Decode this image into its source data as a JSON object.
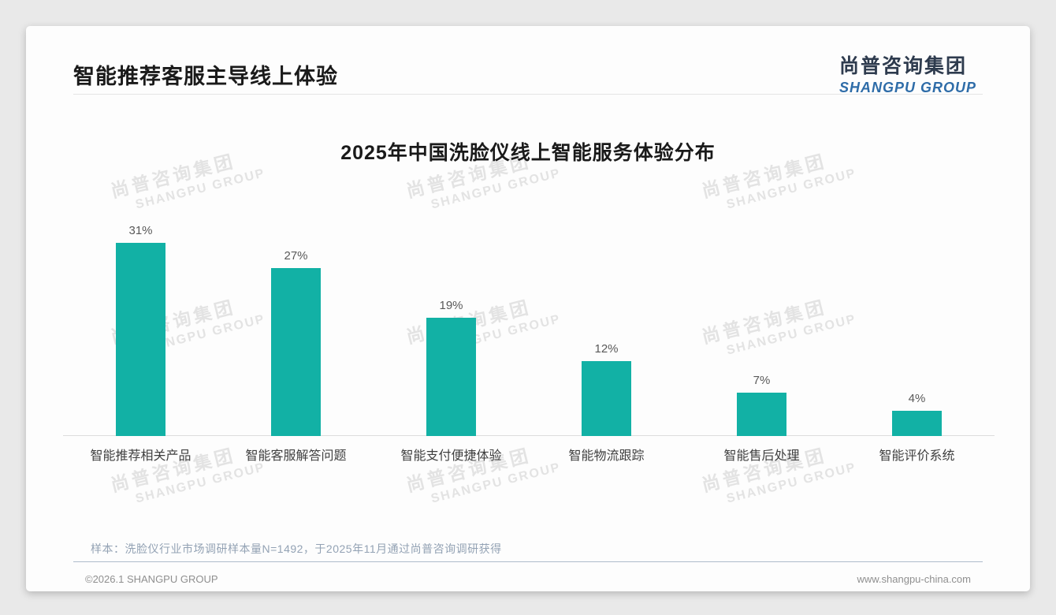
{
  "page": {
    "header": {
      "title": "智能推荐客服主导线上体验"
    },
    "logo": {
      "cn": "尚普咨询集团",
      "en": "SHANGPU GROUP"
    },
    "watermark": {
      "cn": "尚普咨询集团",
      "en": "SHANGPU GROUP"
    },
    "footnote": "样本：洗脸仪行业市场调研样本量N=1492，于2025年11月通过尚普咨询调研获得",
    "footer": {
      "left": "©2026.1 SHANGPU GROUP",
      "right": "www.shangpu-china.com"
    }
  },
  "colors": {
    "bar": "#12b1a5",
    "logo_cn": "#2e3b4e",
    "logo_en": "#2e6ca8",
    "watermark": "#e3e3e3"
  },
  "chart_data": {
    "type": "bar",
    "title": "2025年中国洗脸仪线上智能服务体验分布",
    "categories": [
      "智能推荐相关产品",
      "智能客服解答问题",
      "智能支付便捷体验",
      "智能物流跟踪",
      "智能售后处理",
      "智能评价系统"
    ],
    "values": [
      31,
      27,
      19,
      12,
      7,
      4
    ],
    "value_labels": [
      "31%",
      "27%",
      "19%",
      "12%",
      "7%",
      "4%"
    ],
    "unit": "%",
    "xlabel": "",
    "ylabel": "",
    "ylim": [
      0,
      35
    ],
    "grid": false,
    "legend": false,
    "bar_color": "#12b1a5"
  }
}
